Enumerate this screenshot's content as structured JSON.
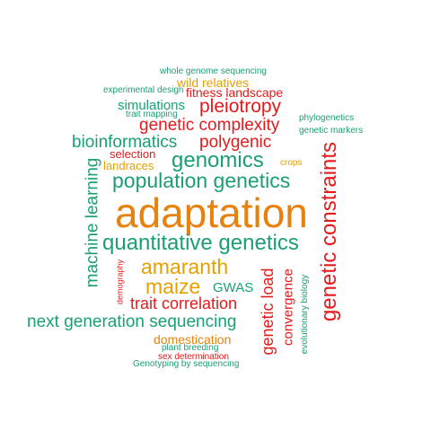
{
  "colors": {
    "teal": "#1b9e77",
    "orange": "#e8820e",
    "red": "#e41a1c",
    "gold": "#e6a000"
  },
  "words": {
    "adaptation": "adaptation",
    "genetic_constraints": "genetic constraints",
    "quantitative_genetics": "quantitative genetics",
    "population_genetics": "population genetics",
    "genomics": "genomics",
    "machine_learning": "machine learning",
    "amaranth": "amaranth",
    "maize": "maize",
    "next_generation_sequencing": "next generation sequencing",
    "trait_correlation": "trait correlation",
    "genetic_complexity": "genetic complexity",
    "bioinformatics": "bioinformatics",
    "pleiotropy": "pleiotropy",
    "polygenic": "polygenic",
    "genetic_load": "genetic load",
    "convergence": "convergence",
    "gwas": "GWAS",
    "domestication": "domestication",
    "simulations": "simulations",
    "fitness_landscape": "fitness landscape",
    "wild_relatives": "wild relatives",
    "selection": "selection",
    "landraces": "landraces",
    "whole_genome_sequencing": "whole genome sequencing",
    "experimental_design": "experimental design",
    "trait_mapping": "trait mapping",
    "phylogenetics": "phylogenetics",
    "genetic_markers": "genetic markers",
    "crops": "crops",
    "demography": "demography",
    "evolutionary_biology": "evolutionary biology",
    "plant_breeding": "plant breeding",
    "sex_determination": "sex determination",
    "genotyping_by_sequencing": "Genotyping by sequencing"
  }
}
